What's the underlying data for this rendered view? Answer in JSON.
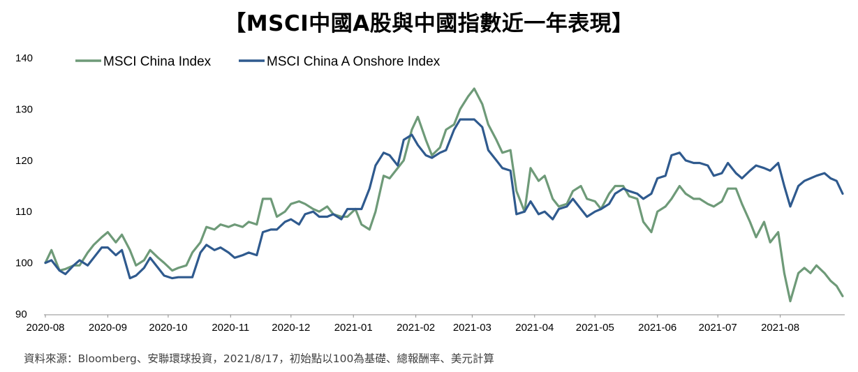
{
  "title": "【MSCI中國A股與中國指數近一年表現】",
  "source": "資料來源：Bloomberg、安聯環球投資，2021/8/17，初始點以100為基礎、總報酬率、美元計算",
  "chart_data": {
    "type": "line",
    "title": "【MSCI中國A股與中國指數近一年表現】",
    "xlabel": "",
    "ylabel": "",
    "ylim": [
      90,
      140
    ],
    "yticks": [
      90,
      100,
      110,
      120,
      130,
      140
    ],
    "x_tick_labels": [
      "2020-08",
      "2020-09",
      "2020-10",
      "2020-11",
      "2020-12",
      "2021-01",
      "2021-02",
      "2021-03",
      "2021-04",
      "2021-05",
      "2021-06",
      "2021-07",
      "2021-08"
    ],
    "x_tick_dates": [
      "2020-08-17",
      "2020-09-17",
      "2020-10-17",
      "2020-11-17",
      "2020-12-17",
      "2021-01-17",
      "2021-02-17",
      "2021-03-17",
      "2021-04-17",
      "2021-05-17",
      "2021-06-17",
      "2021-07-17",
      "2021-08-17"
    ],
    "grid": false,
    "legend_position": "top-left",
    "series": [
      {
        "name": "MSCI China Index",
        "color": "#6e9a78",
        "points": [
          [
            "2020-08-17",
            100.0
          ],
          [
            "2020-08-20",
            102.5
          ],
          [
            "2020-08-24",
            98.5
          ],
          [
            "2020-08-27",
            98.8
          ],
          [
            "2020-08-31",
            99.5
          ],
          [
            "2020-09-03",
            99.5
          ],
          [
            "2020-09-07",
            102.0
          ],
          [
            "2020-09-10",
            103.5
          ],
          [
            "2020-09-14",
            105.0
          ],
          [
            "2020-09-17",
            106.0
          ],
          [
            "2020-09-21",
            104.0
          ],
          [
            "2020-09-24",
            105.5
          ],
          [
            "2020-09-28",
            102.5
          ],
          [
            "2020-10-01",
            99.5
          ],
          [
            "2020-10-05",
            100.5
          ],
          [
            "2020-10-08",
            102.5
          ],
          [
            "2020-10-12",
            101.0
          ],
          [
            "2020-10-15",
            100.0
          ],
          [
            "2020-10-19",
            98.5
          ],
          [
            "2020-10-22",
            99.0
          ],
          [
            "2020-10-26",
            99.5
          ],
          [
            "2020-10-29",
            102.0
          ],
          [
            "2020-11-02",
            104.0
          ],
          [
            "2020-11-05",
            107.0
          ],
          [
            "2020-11-09",
            106.5
          ],
          [
            "2020-11-12",
            107.5
          ],
          [
            "2020-11-16",
            107.0
          ],
          [
            "2020-11-19",
            107.5
          ],
          [
            "2020-11-23",
            107.0
          ],
          [
            "2020-11-26",
            108.0
          ],
          [
            "2020-11-30",
            107.5
          ],
          [
            "2020-12-03",
            112.5
          ],
          [
            "2020-12-07",
            112.5
          ],
          [
            "2020-12-10",
            109.0
          ],
          [
            "2020-12-14",
            110.0
          ],
          [
            "2020-12-17",
            111.5
          ],
          [
            "2020-12-21",
            112.0
          ],
          [
            "2020-12-24",
            111.5
          ],
          [
            "2020-12-28",
            110.5
          ],
          [
            "2020-12-31",
            110.0
          ],
          [
            "2021-01-04",
            111.0
          ],
          [
            "2021-01-07",
            109.5
          ],
          [
            "2021-01-11",
            109.0
          ],
          [
            "2021-01-14",
            109.0
          ],
          [
            "2021-01-18",
            110.5
          ],
          [
            "2021-01-21",
            107.5
          ],
          [
            "2021-01-25",
            106.5
          ],
          [
            "2021-01-28",
            110.0
          ],
          [
            "2021-02-01",
            117.0
          ],
          [
            "2021-02-04",
            116.5
          ],
          [
            "2021-02-08",
            118.5
          ],
          [
            "2021-02-11",
            120.0
          ],
          [
            "2021-02-15",
            126.0
          ],
          [
            "2021-02-18",
            128.5
          ],
          [
            "2021-02-22",
            124.0
          ],
          [
            "2021-02-25",
            121.0
          ],
          [
            "2021-03-01",
            122.5
          ],
          [
            "2021-03-04",
            126.0
          ],
          [
            "2021-03-08",
            127.0
          ],
          [
            "2021-03-11",
            130.0
          ],
          [
            "2021-03-15",
            132.5
          ],
          [
            "2021-03-18",
            134.0
          ],
          [
            "2021-03-22",
            131.0
          ],
          [
            "2021-03-25",
            127.0
          ],
          [
            "2021-03-29",
            124.0
          ],
          [
            "2021-04-01",
            121.5
          ],
          [
            "2021-04-05",
            122.0
          ],
          [
            "2021-04-08",
            114.0
          ],
          [
            "2021-04-12",
            110.0
          ],
          [
            "2021-04-15",
            118.5
          ],
          [
            "2021-04-19",
            116.0
          ],
          [
            "2021-04-22",
            117.0
          ],
          [
            "2021-04-26",
            112.5
          ],
          [
            "2021-04-29",
            111.0
          ],
          [
            "2021-05-03",
            111.5
          ],
          [
            "2021-05-06",
            114.0
          ],
          [
            "2021-05-10",
            115.0
          ],
          [
            "2021-05-13",
            112.5
          ],
          [
            "2021-05-17",
            112.0
          ],
          [
            "2021-05-20",
            110.5
          ],
          [
            "2021-05-24",
            113.5
          ],
          [
            "2021-05-27",
            115.0
          ],
          [
            "2021-05-31",
            115.0
          ],
          [
            "2021-06-03",
            113.0
          ],
          [
            "2021-06-07",
            112.5
          ],
          [
            "2021-06-10",
            108.0
          ],
          [
            "2021-06-14",
            106.0
          ],
          [
            "2021-06-17",
            110.0
          ],
          [
            "2021-06-21",
            111.0
          ],
          [
            "2021-06-24",
            112.5
          ],
          [
            "2021-06-28",
            115.0
          ],
          [
            "2021-07-01",
            113.5
          ],
          [
            "2021-07-05",
            112.5
          ],
          [
            "2021-07-08",
            112.5
          ],
          [
            "2021-07-12",
            111.5
          ],
          [
            "2021-07-15",
            111.0
          ],
          [
            "2021-07-19",
            112.0
          ],
          [
            "2021-07-22",
            114.5
          ],
          [
            "2021-07-26",
            114.5
          ],
          [
            "2021-07-29",
            111.5
          ],
          [
            "2021-08-02",
            108.0
          ],
          [
            "2021-08-05",
            105.0
          ],
          [
            "2021-08-09",
            108.0
          ],
          [
            "2021-08-12",
            104.0
          ],
          [
            "2021-08-16",
            106.0
          ],
          [
            "2021-08-19",
            98.0
          ],
          [
            "2021-08-22",
            92.5
          ],
          [
            "2021-08-26",
            98.0
          ],
          [
            "2021-08-29",
            99.0
          ],
          [
            "2021-09-01",
            98.0
          ],
          [
            "2021-09-04",
            99.5
          ],
          [
            "2021-09-08",
            98.0
          ],
          [
            "2021-09-11",
            96.5
          ],
          [
            "2021-09-14",
            95.5
          ],
          [
            "2021-09-17",
            93.5
          ]
        ]
      },
      {
        "name": "MSCI China A Onshore Index",
        "color": "#2f5a8e",
        "points": [
          [
            "2020-08-17",
            100.0
          ],
          [
            "2020-08-20",
            100.5
          ],
          [
            "2020-08-24",
            98.5
          ],
          [
            "2020-08-27",
            97.8
          ],
          [
            "2020-08-31",
            99.5
          ],
          [
            "2020-09-03",
            100.5
          ],
          [
            "2020-09-07",
            99.5
          ],
          [
            "2020-09-10",
            101.0
          ],
          [
            "2020-09-14",
            103.0
          ],
          [
            "2020-09-17",
            103.0
          ],
          [
            "2020-09-21",
            101.5
          ],
          [
            "2020-09-24",
            102.5
          ],
          [
            "2020-09-28",
            97.0
          ],
          [
            "2020-10-01",
            97.5
          ],
          [
            "2020-10-05",
            99.0
          ],
          [
            "2020-10-08",
            101.0
          ],
          [
            "2020-10-12",
            99.0
          ],
          [
            "2020-10-15",
            97.5
          ],
          [
            "2020-10-19",
            97.0
          ],
          [
            "2020-10-22",
            97.2
          ],
          [
            "2020-10-26",
            97.2
          ],
          [
            "2020-10-29",
            97.2
          ],
          [
            "2020-11-02",
            102.0
          ],
          [
            "2020-11-05",
            103.5
          ],
          [
            "2020-11-09",
            102.5
          ],
          [
            "2020-11-12",
            103.0
          ],
          [
            "2020-11-16",
            102.0
          ],
          [
            "2020-11-19",
            101.0
          ],
          [
            "2020-11-23",
            101.5
          ],
          [
            "2020-11-26",
            102.0
          ],
          [
            "2020-11-30",
            101.5
          ],
          [
            "2020-12-03",
            106.0
          ],
          [
            "2020-12-07",
            106.5
          ],
          [
            "2020-12-10",
            106.5
          ],
          [
            "2020-12-14",
            108.0
          ],
          [
            "2020-12-17",
            108.5
          ],
          [
            "2020-12-21",
            107.5
          ],
          [
            "2020-12-24",
            109.5
          ],
          [
            "2020-12-28",
            110.0
          ],
          [
            "2020-12-31",
            109.0
          ],
          [
            "2021-01-04",
            109.0
          ],
          [
            "2021-01-07",
            109.5
          ],
          [
            "2021-01-11",
            108.5
          ],
          [
            "2021-01-14",
            110.5
          ],
          [
            "2021-01-18",
            110.5
          ],
          [
            "2021-01-21",
            110.5
          ],
          [
            "2021-01-25",
            114.5
          ],
          [
            "2021-01-28",
            119.0
          ],
          [
            "2021-02-01",
            121.5
          ],
          [
            "2021-02-04",
            121.0
          ],
          [
            "2021-02-08",
            119.0
          ],
          [
            "2021-02-11",
            124.0
          ],
          [
            "2021-02-15",
            125.0
          ],
          [
            "2021-02-18",
            123.0
          ],
          [
            "2021-02-22",
            121.0
          ],
          [
            "2021-02-25",
            120.5
          ],
          [
            "2021-03-01",
            121.5
          ],
          [
            "2021-03-04",
            122.0
          ],
          [
            "2021-03-08",
            126.0
          ],
          [
            "2021-03-11",
            128.0
          ],
          [
            "2021-03-15",
            128.0
          ],
          [
            "2021-03-18",
            128.0
          ],
          [
            "2021-03-22",
            126.5
          ],
          [
            "2021-03-25",
            122.0
          ],
          [
            "2021-03-29",
            120.0
          ],
          [
            "2021-04-01",
            118.5
          ],
          [
            "2021-04-05",
            118.0
          ],
          [
            "2021-04-08",
            109.5
          ],
          [
            "2021-04-12",
            110.0
          ],
          [
            "2021-04-15",
            112.0
          ],
          [
            "2021-04-19",
            109.5
          ],
          [
            "2021-04-22",
            110.0
          ],
          [
            "2021-04-26",
            108.5
          ],
          [
            "2021-04-29",
            110.5
          ],
          [
            "2021-05-03",
            111.0
          ],
          [
            "2021-05-06",
            112.5
          ],
          [
            "2021-05-10",
            110.5
          ],
          [
            "2021-05-13",
            109.0
          ],
          [
            "2021-05-17",
            110.0
          ],
          [
            "2021-05-20",
            110.5
          ],
          [
            "2021-05-24",
            111.5
          ],
          [
            "2021-05-27",
            113.5
          ],
          [
            "2021-05-31",
            114.5
          ],
          [
            "2021-06-03",
            114.0
          ],
          [
            "2021-06-07",
            113.5
          ],
          [
            "2021-06-10",
            112.5
          ],
          [
            "2021-06-14",
            113.5
          ],
          [
            "2021-06-17",
            116.5
          ],
          [
            "2021-06-21",
            117.0
          ],
          [
            "2021-06-24",
            121.0
          ],
          [
            "2021-06-28",
            121.5
          ],
          [
            "2021-07-01",
            120.0
          ],
          [
            "2021-07-05",
            119.5
          ],
          [
            "2021-07-08",
            119.5
          ],
          [
            "2021-07-12",
            119.0
          ],
          [
            "2021-07-15",
            117.0
          ],
          [
            "2021-07-19",
            117.5
          ],
          [
            "2021-07-22",
            119.5
          ],
          [
            "2021-07-26",
            117.5
          ],
          [
            "2021-07-29",
            116.5
          ],
          [
            "2021-08-02",
            118.0
          ],
          [
            "2021-08-05",
            119.0
          ],
          [
            "2021-08-09",
            118.5
          ],
          [
            "2021-08-12",
            118.0
          ],
          [
            "2021-08-16",
            119.5
          ],
          [
            "2021-08-19",
            115.0
          ],
          [
            "2021-08-22",
            111.0
          ],
          [
            "2021-08-26",
            115.0
          ],
          [
            "2021-08-29",
            116.0
          ],
          [
            "2021-09-01",
            116.5
          ],
          [
            "2021-09-04",
            117.0
          ],
          [
            "2021-09-08",
            117.5
          ],
          [
            "2021-09-11",
            116.5
          ],
          [
            "2021-09-14",
            116.0
          ],
          [
            "2021-09-17",
            113.5
          ]
        ]
      }
    ]
  }
}
